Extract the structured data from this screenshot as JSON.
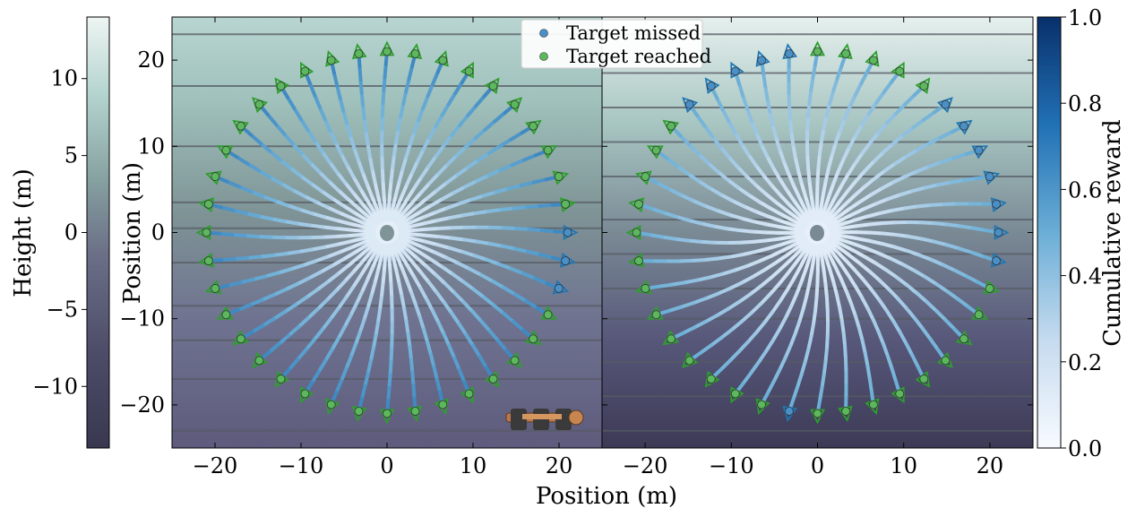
{
  "colors": {
    "height_cmap": [
      "#393850",
      "#4d4c68",
      "#6b6f87",
      "#85a0a0",
      "#b4d4cf",
      "#eef5f3"
    ],
    "reward_cmap": [
      "#f7fbff",
      "#c6dbef",
      "#6baed6",
      "#2171b5",
      "#08306b"
    ],
    "missed": "#4a90c8",
    "reached": "#5cb85c",
    "arrow_reached": "#2ca02c",
    "arrow_missed": "#1f77b4"
  },
  "chart_data": [
    {
      "type": "scatter",
      "panel": "left",
      "xlim": [
        -25,
        25
      ],
      "ylim": [
        -25,
        25
      ],
      "xlabel": "Position (m)",
      "ylabel": "Position (m)",
      "xticks": [
        -20,
        -10,
        0,
        10,
        20
      ],
      "yticks": [
        -20,
        -10,
        0,
        10,
        20
      ],
      "n_targets": 40,
      "target_radius_m": 21,
      "missed_angles_deg": [
        9,
        9,
        -18,
        -27
      ],
      "missed_points": [
        [
          21.0,
          0.8
        ],
        [
          21.0,
          -2.3
        ],
        [
          20.3,
          -5.6
        ]
      ],
      "height_contour_levels": [
        -23.0,
        -17.0,
        -12.5,
        -8.5,
        -3.5,
        0.5,
        3.5,
        10.0,
        17.0,
        23.0
      ],
      "legend": {
        "position": "top-center",
        "entries": [
          "Target missed",
          "Target reached"
        ]
      }
    },
    {
      "type": "scatter",
      "panel": "right",
      "xlim": [
        -25,
        25
      ],
      "ylim": [
        -25,
        25
      ],
      "xticks": [
        -20,
        -10,
        0,
        10,
        20
      ],
      "n_targets": 40,
      "target_radius_m": 21,
      "missed_points": [
        [
          -3.0,
          20.8
        ],
        [
          -6.8,
          19.5
        ],
        [
          -9.8,
          18.3
        ],
        [
          -12.5,
          16.4
        ],
        [
          -15.4,
          13.9
        ],
        [
          15.3,
          15.0
        ],
        [
          17.5,
          12.7
        ],
        [
          18.2,
          10.3
        ],
        [
          19.2,
          7.7
        ],
        [
          20.0,
          4.8
        ],
        [
          21.0,
          2.0
        ],
        [
          21.2,
          -1.2
        ],
        [
          20.9,
          -4.0
        ],
        [
          -3.0,
          -21.2
        ]
      ],
      "height_contour_levels": [
        -23.0,
        -19.0,
        -15.0,
        -10.0,
        -6.5,
        -2.5,
        1.5,
        6.5,
        10.5,
        14.5,
        18.5,
        23.0
      ],
      "legend": null
    },
    {
      "type": "heatmap",
      "role": "height-colorbar",
      "label": "Height (m)",
      "ticks": [
        -10,
        -5,
        0,
        5,
        10
      ],
      "tick_labels": [
        "−10",
        "−5",
        "0",
        "5",
        "10"
      ],
      "range": [
        -14.0,
        14.0
      ]
    },
    {
      "type": "heatmap",
      "role": "reward-colorbar",
      "label": "Cumulative reward",
      "ticks": [
        0.0,
        0.2,
        0.4,
        0.6,
        0.8,
        1.0
      ],
      "tick_labels": [
        "0.0",
        "0.2",
        "0.4",
        "0.6",
        "0.8",
        "1.0"
      ],
      "range": [
        0.0,
        1.0
      ]
    }
  ],
  "tick_text": {
    "x": [
      "−20",
      "−10",
      "0",
      "10",
      "20"
    ],
    "y": [
      "−20",
      "−10",
      "0",
      "10",
      "20"
    ]
  },
  "legend": {
    "missed_label": "Target missed",
    "reached_label": "Target reached"
  },
  "labels": {
    "xlabel": "Position (m)",
    "ylabel": "Position (m)",
    "height_cb": "Height (m)",
    "reward_cb": "Cumulative reward"
  }
}
